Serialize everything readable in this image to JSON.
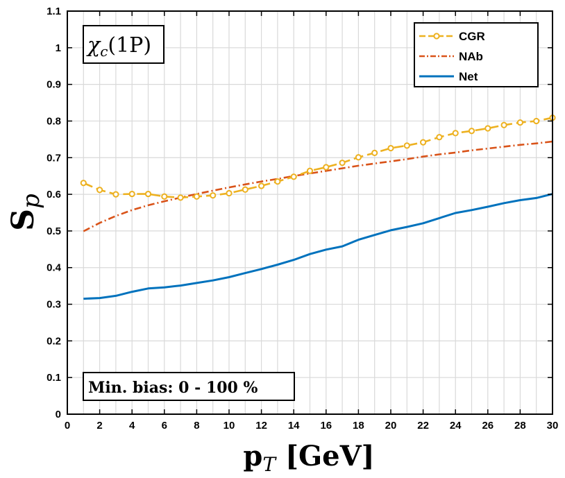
{
  "chart_data": {
    "type": "line",
    "title": "",
    "xlabel_main": "p",
    "xlabel_sub": "T",
    "xlabel_unit": "[GeV]",
    "ylabel_main": "S",
    "ylabel_sub": "p",
    "xlim": [
      0,
      30
    ],
    "ylim": [
      0,
      1.1
    ],
    "grid": true,
    "x_ticks": [
      0,
      2,
      4,
      6,
      8,
      10,
      12,
      14,
      16,
      18,
      20,
      22,
      24,
      26,
      28,
      30
    ],
    "y_ticks": [
      0,
      0.1,
      0.2,
      0.3,
      0.4,
      0.5,
      0.6,
      0.7,
      0.8,
      0.9,
      1,
      1.1
    ],
    "x_tick_labels": [
      "0",
      "2",
      "4",
      "6",
      "8",
      "10",
      "12",
      "14",
      "16",
      "18",
      "20",
      "22",
      "24",
      "26",
      "28",
      "30"
    ],
    "y_tick_labels": [
      "0",
      "0.1",
      "0.2",
      "0.3",
      "0.4",
      "0.5",
      "0.6",
      "0.7",
      "0.8",
      "0.9",
      "1",
      "1.1"
    ],
    "legend_position": "top-right",
    "series": [
      {
        "name": "CGR",
        "color": "#EDB120",
        "style": "dashed-circle",
        "x": [
          1,
          2,
          3,
          4,
          5,
          6,
          7,
          8,
          9,
          10,
          11,
          12,
          13,
          14,
          15,
          16,
          17,
          18,
          19,
          20,
          21,
          22,
          23,
          24,
          25,
          26,
          27,
          28,
          29,
          30
        ],
        "values": [
          0.631,
          0.612,
          0.6,
          0.601,
          0.601,
          0.594,
          0.591,
          0.594,
          0.597,
          0.603,
          0.613,
          0.623,
          0.635,
          0.648,
          0.664,
          0.674,
          0.686,
          0.701,
          0.713,
          0.726,
          0.733,
          0.742,
          0.756,
          0.767,
          0.773,
          0.78,
          0.789,
          0.796,
          0.8,
          0.809
        ]
      },
      {
        "name": "NAb",
        "color": "#D95319",
        "style": "dash-dot",
        "x": [
          1,
          2,
          3,
          4,
          5,
          6,
          7,
          8,
          9,
          10,
          11,
          12,
          13,
          14,
          15,
          16,
          17,
          18,
          19,
          20,
          21,
          22,
          23,
          24,
          25,
          26,
          27,
          28,
          29,
          30
        ],
        "values": [
          0.499,
          0.522,
          0.541,
          0.557,
          0.57,
          0.581,
          0.591,
          0.601,
          0.61,
          0.619,
          0.627,
          0.635,
          0.642,
          0.65,
          0.657,
          0.664,
          0.671,
          0.678,
          0.684,
          0.69,
          0.696,
          0.703,
          0.709,
          0.714,
          0.72,
          0.725,
          0.73,
          0.735,
          0.739,
          0.744
        ]
      },
      {
        "name": "Net",
        "color": "#0072BD",
        "style": "solid",
        "x": [
          1,
          2,
          3,
          4,
          5,
          6,
          7,
          8,
          9,
          10,
          11,
          12,
          13,
          14,
          15,
          16,
          17,
          18,
          19,
          20,
          21,
          22,
          23,
          24,
          25,
          26,
          27,
          28,
          29,
          30
        ],
        "values": [
          0.315,
          0.317,
          0.323,
          0.334,
          0.343,
          0.346,
          0.351,
          0.358,
          0.365,
          0.374,
          0.385,
          0.396,
          0.408,
          0.421,
          0.437,
          0.449,
          0.458,
          0.476,
          0.489,
          0.502,
          0.511,
          0.521,
          0.535,
          0.549,
          0.557,
          0.566,
          0.576,
          0.584,
          0.59,
          0.601
        ]
      }
    ],
    "annotations": {
      "particle_chi": "χ",
      "particle_sub": "c",
      "particle_state": "(1P)",
      "bias_label": "Min. bias: 0 - 100 %"
    }
  }
}
